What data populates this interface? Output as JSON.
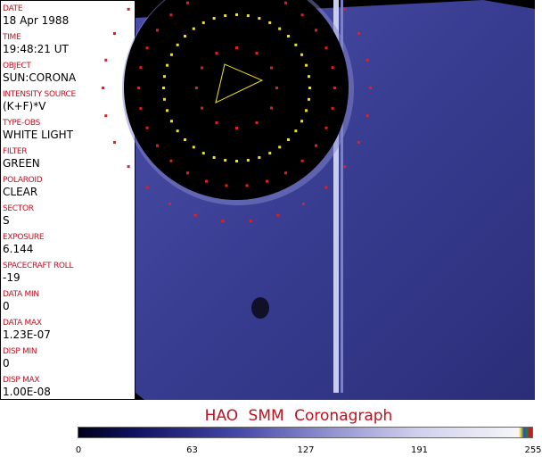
{
  "fields": [
    {
      "label": "DATE",
      "value": "18 Apr 1988"
    },
    {
      "label": "TIME",
      "value": "19:48:21 UT"
    },
    {
      "label": "OBJECT",
      "value": "SUN:CORONA"
    },
    {
      "label": "INTENSITY SOURCE",
      "value": "(K+F)*V"
    },
    {
      "label": "TYPE-OBS",
      "value": "WHITE LIGHT"
    },
    {
      "label": "FILTER",
      "value": "GREEN"
    },
    {
      "label": "POLAROID",
      "value": "CLEAR"
    },
    {
      "label": "SECTOR",
      "value": "S"
    },
    {
      "label": "EXPOSURE",
      "value": "6.144"
    },
    {
      "label": "SPACECRAFT ROLL",
      "value": "-19"
    },
    {
      "label": "DATA MIN",
      "value": "0"
    },
    {
      "label": "DATA MAX",
      "value": "1.23E-07"
    },
    {
      "label": "DISP MIN",
      "value": "0"
    },
    {
      "label": "DISP MAX",
      "value": "1.00E-08"
    }
  ],
  "title": "HAO  SMM Coronagraph",
  "colorbar": {
    "ticks": [
      "0",
      "63",
      "127",
      "191",
      "255"
    ]
  },
  "colors": {
    "label": "#c01020",
    "background_blue": "#3a3e90"
  }
}
